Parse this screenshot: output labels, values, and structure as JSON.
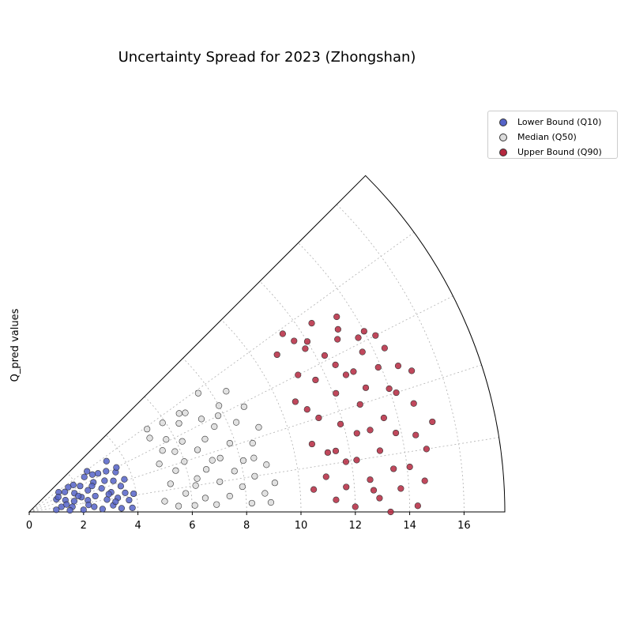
{
  "chart_data": {
    "type": "scatter",
    "projection": "polar-quarter-fan",
    "title": "Uncertainty Spread for 2023 (Zhongshan)",
    "ylabel": "Q_pred values",
    "xlabel": "",
    "r_ticks": [
      0,
      2,
      4,
      6,
      8,
      10,
      12,
      14,
      16
    ],
    "r_max": 17.5,
    "theta_span_deg": [
      0,
      45
    ],
    "grid": true,
    "legend_position": "upper-right outside",
    "series": [
      {
        "name": "Lower Bound (Q10)",
        "color": "#5563c8",
        "points": [
          [
            1.0,
            0.1
          ],
          [
            1.1,
            0.55
          ],
          [
            1.2,
            0.2
          ],
          [
            1.3,
            0.75
          ],
          [
            1.4,
            0.4
          ],
          [
            1.5,
            0.65
          ],
          [
            1.6,
            0.15
          ],
          [
            1.7,
            0.3
          ],
          [
            1.8,
            0.5
          ],
          [
            1.9,
            0.7
          ],
          [
            2.0,
            0.05
          ],
          [
            2.0,
            0.35
          ],
          [
            2.1,
            0.6
          ],
          [
            2.2,
            0.25
          ],
          [
            2.3,
            0.45
          ],
          [
            2.4,
            0.1
          ],
          [
            2.4,
            0.72
          ],
          [
            2.5,
            0.3
          ],
          [
            2.6,
            0.55
          ],
          [
            2.7,
            0.05
          ],
          [
            2.8,
            0.4
          ],
          [
            2.9,
            0.2
          ],
          [
            2.9,
            0.65
          ],
          [
            3.0,
            0.5
          ],
          [
            3.1,
            0.1
          ],
          [
            3.1,
            0.3
          ],
          [
            3.2,
            0.62
          ],
          [
            3.3,
            0.2
          ],
          [
            3.3,
            0.45
          ],
          [
            3.4,
            0.05
          ],
          [
            3.5,
            0.35
          ],
          [
            3.5,
            0.55
          ],
          [
            3.6,
            0.25
          ],
          [
            3.7,
            0.15
          ],
          [
            3.7,
            0.42
          ],
          [
            3.8,
            0.05
          ],
          [
            3.9,
            0.22
          ],
          [
            3.4,
            0.74
          ],
          [
            2.6,
            0.78
          ],
          [
            1.7,
            0.72
          ],
          [
            1.2,
            0.6
          ],
          [
            1.5,
            0.05
          ],
          [
            2.2,
            0.15
          ],
          [
            2.7,
            0.68
          ],
          [
            3.0,
            0.28
          ],
          [
            3.6,
            0.6
          ],
          [
            1.9,
            0.4
          ],
          [
            2.5,
            0.5
          ],
          [
            3.2,
            0.15
          ],
          [
            1.4,
            0.25
          ]
        ]
      },
      {
        "name": "Median (Q50)",
        "color": "#dcdcdc",
        "points": [
          [
            5.0,
            0.1
          ],
          [
            5.1,
            0.45
          ],
          [
            5.2,
            0.7
          ],
          [
            5.3,
            0.25
          ],
          [
            5.4,
            0.55
          ],
          [
            5.5,
            0.05
          ],
          [
            5.6,
            0.35
          ],
          [
            5.7,
            0.62
          ],
          [
            5.8,
            0.15
          ],
          [
            5.9,
            0.75
          ],
          [
            6.0,
            0.4
          ],
          [
            6.1,
            0.05
          ],
          [
            6.2,
            0.55
          ],
          [
            6.3,
            0.25
          ],
          [
            6.4,
            0.68
          ],
          [
            6.5,
            0.1
          ],
          [
            6.6,
            0.45
          ],
          [
            6.7,
            0.3
          ],
          [
            6.8,
            0.72
          ],
          [
            6.9,
            0.05
          ],
          [
            7.0,
            0.5
          ],
          [
            7.1,
            0.2
          ],
          [
            7.2,
            0.63
          ],
          [
            7.3,
            0.35
          ],
          [
            7.4,
            0.1
          ],
          [
            7.5,
            0.55
          ],
          [
            7.6,
            0.78
          ],
          [
            7.7,
            0.25
          ],
          [
            7.8,
            0.42
          ],
          [
            7.9,
            0.15
          ],
          [
            8.0,
            0.65
          ],
          [
            8.1,
            0.3
          ],
          [
            8.2,
            0.05
          ],
          [
            8.3,
            0.52
          ],
          [
            8.4,
            0.2
          ],
          [
            8.5,
            0.7
          ],
          [
            8.6,
            0.38
          ],
          [
            8.7,
            0.1
          ],
          [
            8.8,
            0.58
          ],
          [
            8.9,
            0.25
          ],
          [
            9.0,
            0.45
          ],
          [
            9.1,
            0.15
          ],
          [
            5.3,
            0.78
          ],
          [
            6.2,
            0.2
          ],
          [
            7.0,
            0.35
          ],
          [
            7.8,
            0.6
          ],
          [
            8.5,
            0.3
          ],
          [
            6.6,
            0.74
          ],
          [
            5.8,
            0.5
          ],
          [
            8.9,
            0.05
          ]
        ]
      },
      {
        "name": "Upper Bound (Q90)",
        "color": "#b5283f",
        "points": [
          [
            10.5,
            0.1
          ],
          [
            10.6,
            0.5
          ],
          [
            10.7,
            0.3
          ],
          [
            10.8,
            0.72
          ],
          [
            11.0,
            0.15
          ],
          [
            11.1,
            0.6
          ],
          [
            11.2,
            0.4
          ],
          [
            11.3,
            0.05
          ],
          [
            11.4,
            0.78
          ],
          [
            11.5,
            0.25
          ],
          [
            11.6,
            0.55
          ],
          [
            11.7,
            0.1
          ],
          [
            11.8,
            0.68
          ],
          [
            11.9,
            0.35
          ],
          [
            12.0,
            0.02
          ],
          [
            12.1,
            0.47
          ],
          [
            12.2,
            0.2
          ],
          [
            12.3,
            0.62
          ],
          [
            12.4,
            0.3
          ],
          [
            12.5,
            0.75
          ],
          [
            12.6,
            0.12
          ],
          [
            12.7,
            0.52
          ],
          [
            12.8,
            0.4
          ],
          [
            12.9,
            0.05
          ],
          [
            13.0,
            0.65
          ],
          [
            13.1,
            0.22
          ],
          [
            13.2,
            0.45
          ],
          [
            13.3,
            0.0
          ],
          [
            13.4,
            0.72
          ],
          [
            13.5,
            0.33
          ],
          [
            13.6,
            0.57
          ],
          [
            13.7,
            0.08
          ],
          [
            13.8,
            0.27
          ],
          [
            13.9,
            0.5
          ],
          [
            14.0,
            0.63
          ],
          [
            14.1,
            0.15
          ],
          [
            14.2,
            0.4
          ],
          [
            14.3,
            0.02
          ],
          [
            14.4,
            0.55
          ],
          [
            14.5,
            0.25
          ],
          [
            14.6,
            0.1
          ],
          [
            14.7,
            0.35
          ],
          [
            14.8,
            0.2
          ],
          [
            15.0,
            0.45
          ],
          [
            15.2,
            0.28
          ],
          [
            12.5,
            0.57
          ],
          [
            13.2,
            0.68
          ],
          [
            11.6,
            0.73
          ],
          [
            14.0,
            0.42
          ],
          [
            12.9,
            0.3
          ],
          [
            13.5,
            0.15
          ],
          [
            11.2,
            0.25
          ],
          [
            10.9,
            0.45
          ],
          [
            12.0,
            0.7
          ],
          [
            14.3,
            0.6
          ],
          [
            13.0,
            0.52
          ],
          [
            11.8,
            0.2
          ],
          [
            12.7,
            0.08
          ],
          [
            14.6,
            0.48
          ],
          [
            13.7,
            0.62
          ]
        ]
      }
    ]
  }
}
